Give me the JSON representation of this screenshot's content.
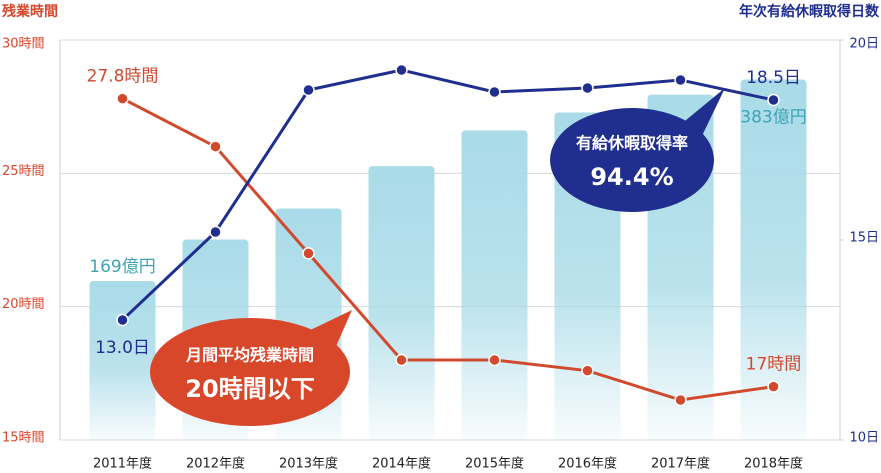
{
  "chart_data": {
    "type": "combo",
    "y_axis_label": "残業時間",
    "y2_axis_label": "年次有給休暇取得日数",
    "categories": [
      "2011年度",
      "2012年度",
      "2013年度",
      "2014年度",
      "2015年度",
      "2016年度",
      "2017年度",
      "2018年度"
    ],
    "series": [
      {
        "type": "bar",
        "axis": "y3",
        "color": "#a9dbe8",
        "values": [
          169,
          213,
          246,
          291,
          329,
          348,
          367,
          383
        ],
        "value_labels": [
          "169億円",
          null,
          null,
          null,
          null,
          null,
          null,
          "383億円"
        ]
      },
      {
        "type": "line",
        "axis": "y",
        "color": "#d14a2e",
        "values": [
          27.8,
          26.0,
          22.0,
          18.0,
          18.0,
          17.6,
          16.5,
          17
        ],
        "value_labels": [
          "27.8時間",
          null,
          null,
          null,
          null,
          null,
          null,
          "17時間"
        ]
      },
      {
        "type": "line",
        "axis": "y2",
        "color": "#1f2e8f",
        "values": [
          13.0,
          15.2,
          18.75,
          19.25,
          18.7,
          18.8,
          19.0,
          18.5
        ],
        "value_labels": [
          "13.0日",
          null,
          null,
          null,
          null,
          null,
          null,
          "18.5日"
        ]
      }
    ],
    "ylim": [
      15,
      30
    ],
    "yticks": [
      {
        "value": 15,
        "label": "15時間"
      },
      {
        "value": 20,
        "label": "20時間"
      },
      {
        "value": 25,
        "label": "25時間"
      },
      {
        "value": 30,
        "label": "30時間"
      }
    ],
    "y2lim": [
      10,
      20
    ],
    "y2ticks": [
      {
        "value": 10,
        "label": "10日"
      },
      {
        "value": 15,
        "label": "15日"
      },
      {
        "value": 20,
        "label": "20日"
      }
    ],
    "y3lim": [
      0,
      425
    ],
    "grid": true,
    "annotations": [
      {
        "lines": [
          "有給休暇取得率",
          "94.4%"
        ],
        "color": "#1f2e8f"
      },
      {
        "lines": [
          "月間平均残業時間",
          "20時間以下"
        ],
        "color": "#d9472b"
      }
    ]
  }
}
